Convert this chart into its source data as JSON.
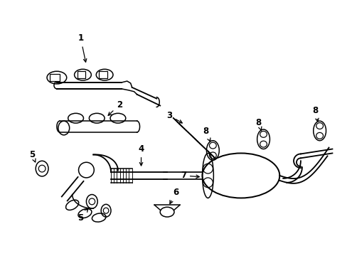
{
  "background_color": "#ffffff",
  "line_color": "#000000",
  "line_width": 1.1,
  "fig_width": 4.89,
  "fig_height": 3.6,
  "dpi": 100
}
